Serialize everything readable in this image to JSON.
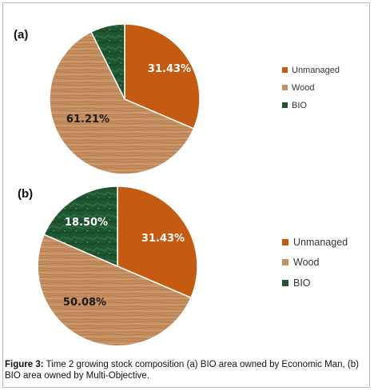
{
  "colors": {
    "unmanaged": "#c55a11",
    "wood": "#c79060",
    "bio": "#1e5631"
  },
  "chart_data": [
    {
      "type": "pie",
      "panel": "(a)",
      "slices": [
        {
          "name": "Unmanaged",
          "value": 31.43,
          "label": "31.43%",
          "color": "#c55a11"
        },
        {
          "name": "Wood",
          "value": 61.21,
          "label": "61.21%",
          "color": "#c79060"
        },
        {
          "name": "BIO",
          "value": 7.36,
          "label": "",
          "color": "#1e5631"
        }
      ],
      "legend": [
        "Unmanaged",
        "Wood",
        "BIO"
      ],
      "legend_position": "right"
    },
    {
      "type": "pie",
      "panel": "(b)",
      "slices": [
        {
          "name": "Unmanaged",
          "value": 31.43,
          "label": "31.43%",
          "color": "#c55a11"
        },
        {
          "name": "Wood",
          "value": 50.08,
          "label": "50.08%",
          "color": "#c79060"
        },
        {
          "name": "BIO",
          "value": 18.5,
          "label": "18.50%",
          "color": "#1e5631"
        }
      ],
      "legend": [
        "Unmanaged",
        "Wood",
        "BIO"
      ],
      "legend_position": "right"
    }
  ],
  "caption": {
    "prefix": "Figure 3:",
    "text": " Time 2 growing stock composition (a) BIO area owned by Economic Man, (b) BIO area owned by Multi-Objective."
  }
}
